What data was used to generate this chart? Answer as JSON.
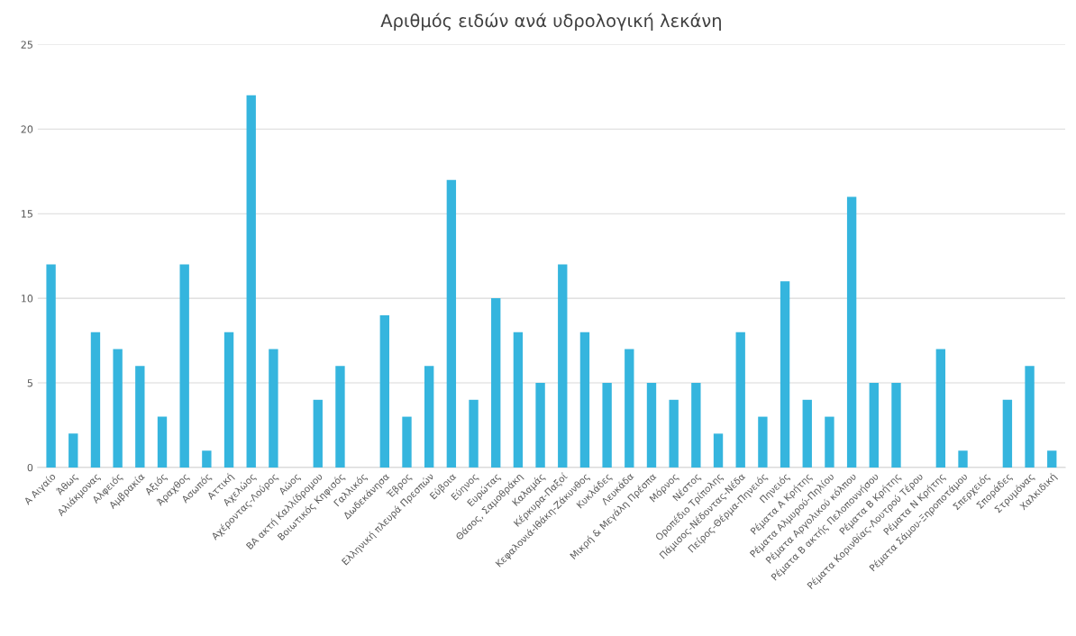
{
  "chart_data": {
    "type": "bar",
    "title": "Αριθμός ειδών ανά υδρολογική λεκάνη",
    "categories": [
      "Α Αιγαίο",
      "Άθως",
      "Αλιάκμονας",
      "Αλφειός",
      "Αμβρακία",
      "Αξιός",
      "Άραχθος",
      "Ασωπός",
      "Αττική",
      "Αχελώος",
      "Αχέροντας-Λούρος",
      "Αώος",
      "ΒΑ ακτή Καλλίδρομου",
      "Βοιωτικός Κηφισός",
      "Γαλλικός",
      "Δωδεκάνησα",
      "Έβρος",
      "Ελληνική πλευρά Πρεσπών",
      "Εύβοια",
      "Εύηνος",
      "Ευρώτας",
      "Θάσος, Σαμοθράκη",
      "Καλαμάς",
      "Κέρκυρα-Παξοί",
      "Κεφαλονιά-Ιθάκη-Ζάκυνθος",
      "Κυκλάδες",
      "Λευκάδα",
      "Μικρή & Μεγάλη Πρέσπα",
      "Μόρνος",
      "Νέστος",
      "Οροπέδιο Τρίπολης",
      "Πάμισος-Νέδοντας-Νέδα",
      "Πείρος-Θέρμα-Πηνειός",
      "Πηνειός",
      "Ρέματα Α Κρήτης",
      "Ρέματα Αλμυρού-Πηλίου",
      "Ρέματα Αργολικού κόλπου",
      "Ρέματα Β ακτής Πελοποννήσου",
      "Ρέματα Β Κρήτης",
      "Ρέματα Κορινθίας-Λουτρού Τέρου",
      "Ρέματα Ν Κρήτης",
      "Ρέματα Σάμου-Ξηροποτάμου",
      "Σπερχειός",
      "Σποράδες",
      "Στρυμόνας",
      "Χαλκιδική"
    ],
    "values": [
      12,
      2,
      8,
      7,
      6,
      3,
      12,
      1,
      8,
      22,
      7,
      0,
      4,
      6,
      0,
      9,
      3,
      6,
      17,
      4,
      10,
      8,
      5,
      12,
      8,
      5,
      7,
      5,
      4,
      5,
      2,
      8,
      3,
      11,
      4,
      3,
      16,
      5,
      5,
      0,
      7,
      1,
      0,
      4,
      6,
      1
    ],
    "color": "#35b5de",
    "ylim": [
      0,
      25
    ],
    "yticks": [
      0,
      5,
      10,
      15,
      20,
      25
    ],
    "grid": "y"
  }
}
